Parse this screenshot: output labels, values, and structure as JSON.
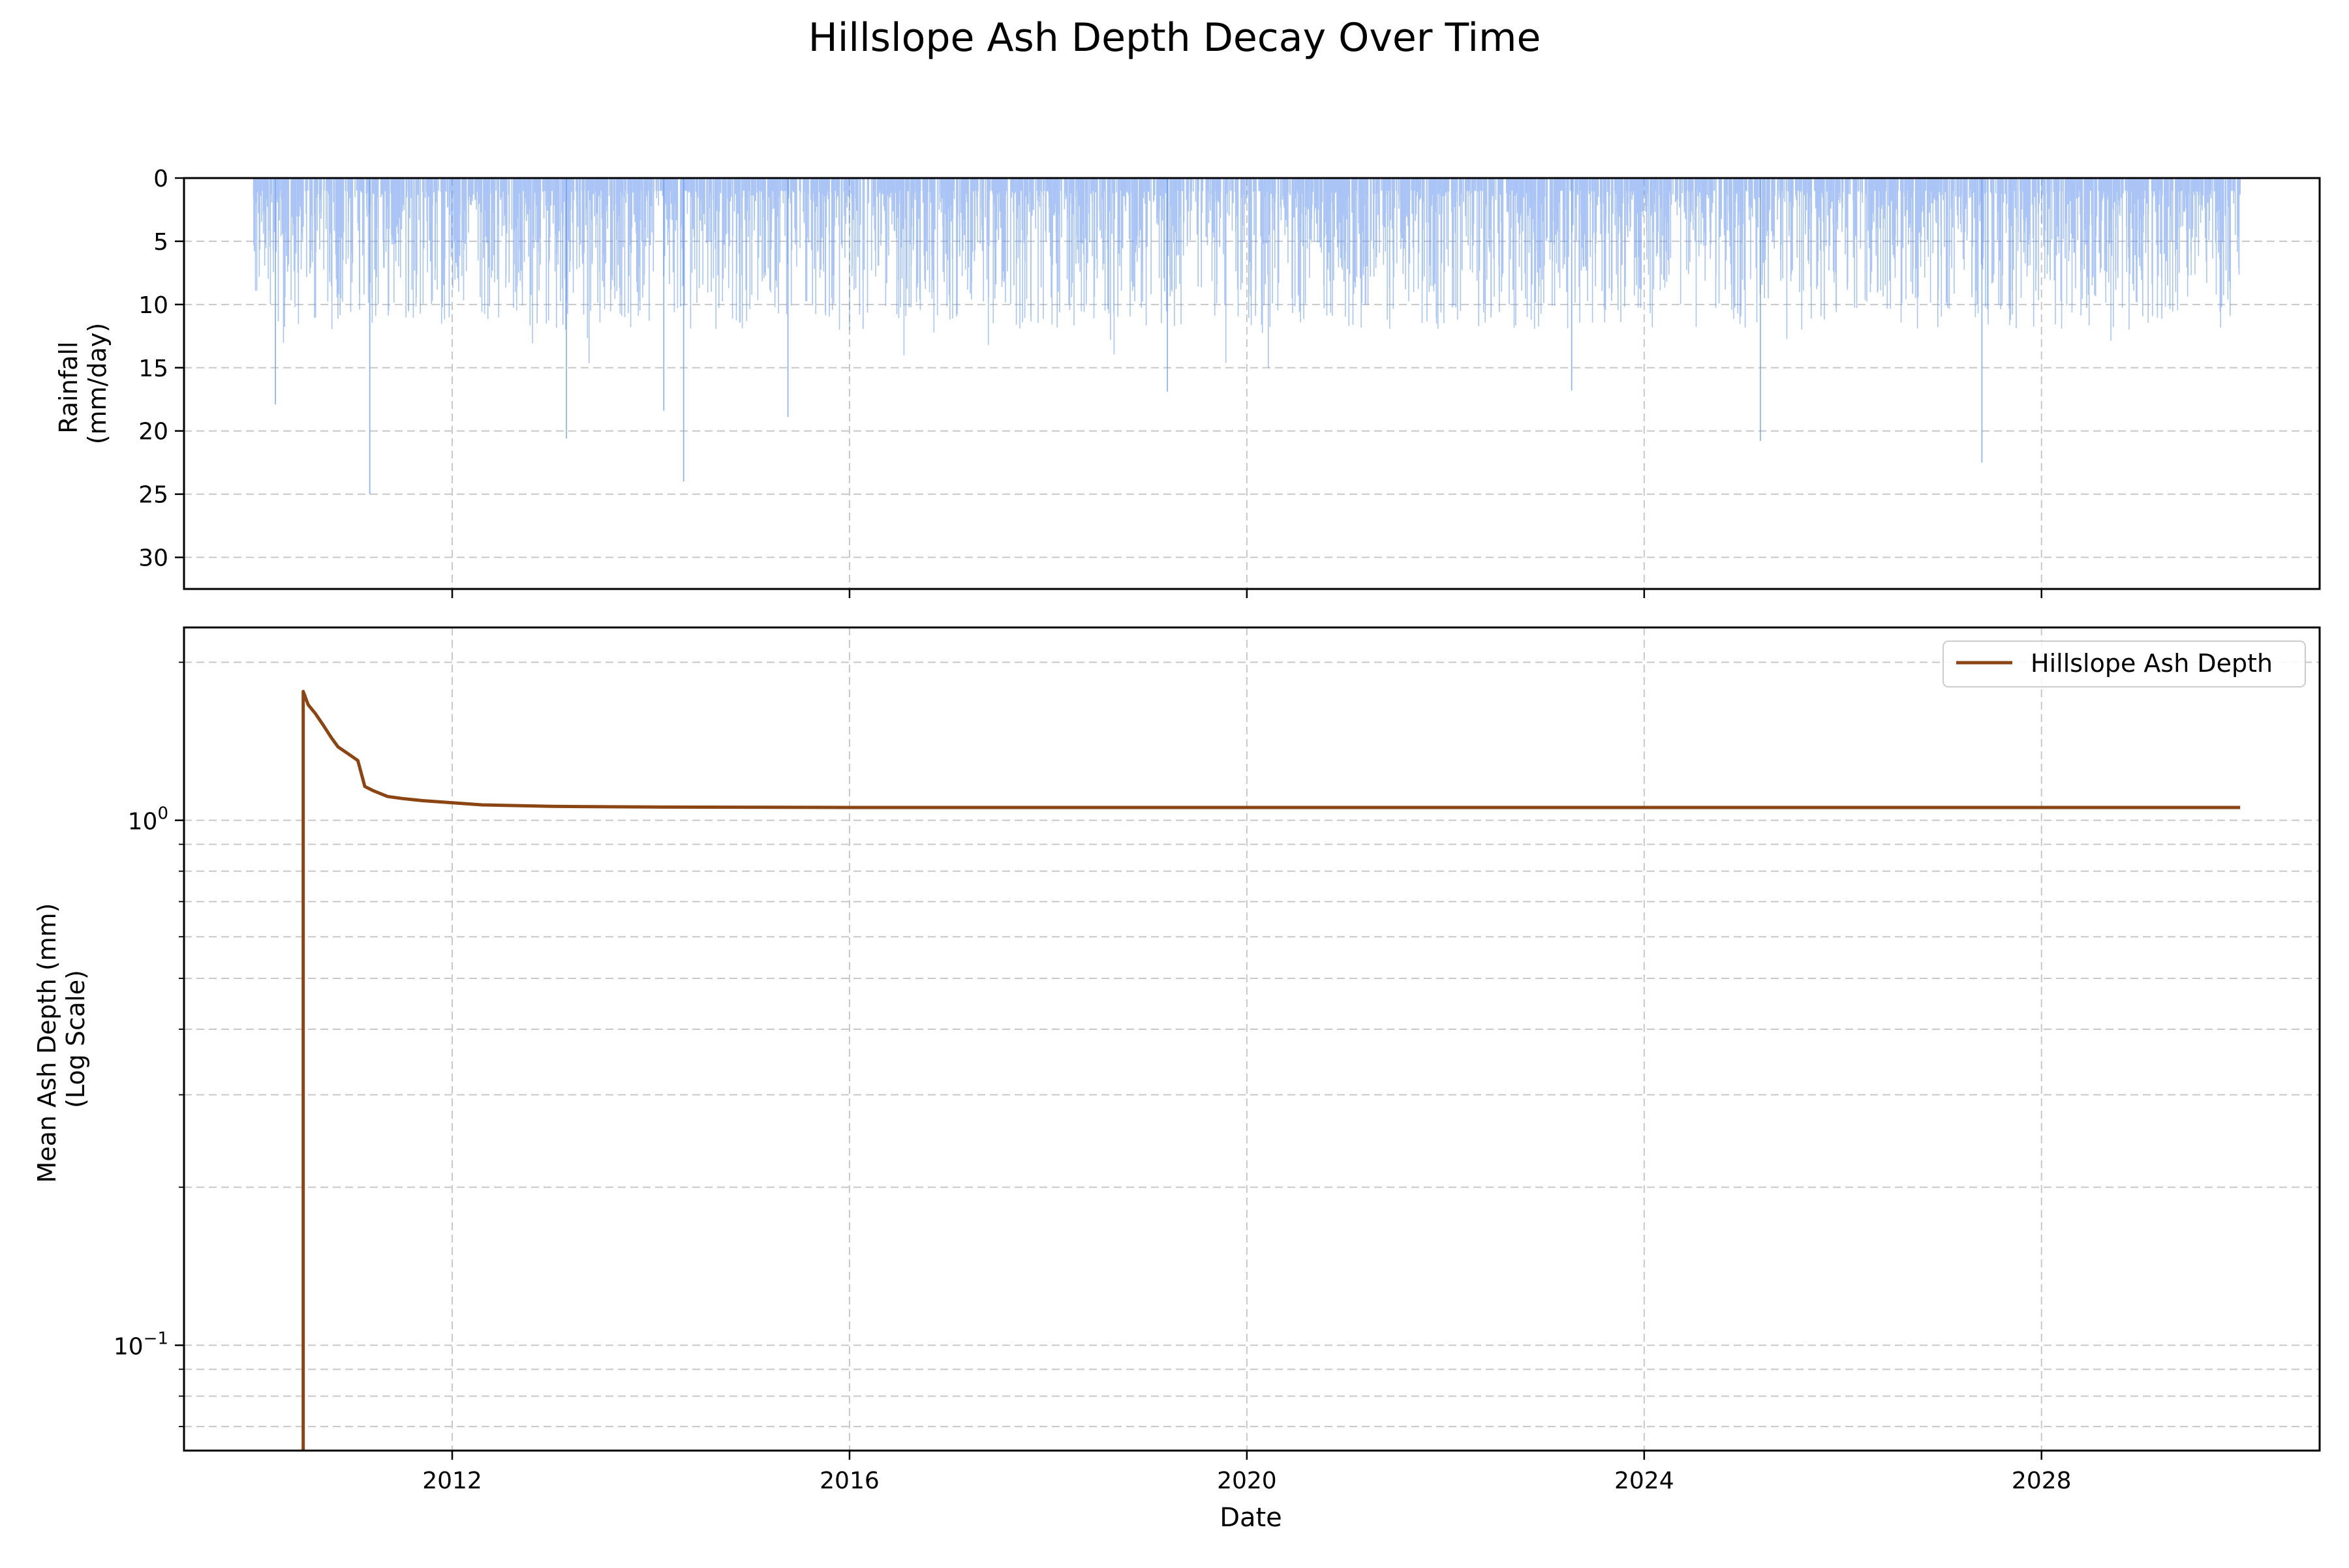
{
  "chart_data": [
    {
      "type": "bar",
      "panel": "top",
      "title": "Hillslope Ash Depth Decay Over Time",
      "ylabel": [
        "Rainfall",
        "(mm/day)"
      ],
      "y_inverted": true,
      "ylim": [
        0,
        32.5
      ],
      "yticks": [
        0,
        5,
        10,
        15,
        20,
        25,
        30
      ],
      "grid": true,
      "color": "#6495ed",
      "bar_values_generation": "daily series, values 0–25 mm/day, dense",
      "x_range_years": [
        2009.3,
        2030.8
      ],
      "data_x_range_years": [
        2010.0,
        2030.0
      ],
      "notable_peaks": [
        {
          "year": 2010.22,
          "value": 17.9
        },
        {
          "year": 2011.17,
          "value": 25.0
        },
        {
          "year": 2013.15,
          "value": 20.6
        },
        {
          "year": 2014.13,
          "value": 18.4
        },
        {
          "year": 2014.33,
          "value": 24.0
        },
        {
          "year": 2015.38,
          "value": 18.9
        },
        {
          "year": 2019.2,
          "value": 16.9
        },
        {
          "year": 2023.27,
          "value": 16.8
        },
        {
          "year": 2025.17,
          "value": 20.8
        },
        {
          "year": 2027.4,
          "value": 22.5
        }
      ]
    },
    {
      "type": "line",
      "panel": "bottom",
      "xlabel": "Date",
      "ylabel": [
        "Mean Ash Depth (mm)",
        "(Log Scale)"
      ],
      "y_scale": "log",
      "ylim": [
        0.063,
        2.33
      ],
      "major_yticks": [
        {
          "value": 1.0,
          "base": "10",
          "exp": "0"
        },
        {
          "value": 0.1,
          "base": "10",
          "exp": "−1"
        }
      ],
      "xticks": [
        "2012",
        "2016",
        "2020",
        "2024",
        "2028"
      ],
      "x_range_years": [
        2009.3,
        2030.8
      ],
      "grid": true,
      "legend": {
        "position": "top-right",
        "entries": [
          "Hillslope Ash Depth"
        ]
      },
      "series": [
        {
          "name": "Hillslope Ash Depth",
          "color": "#8b4513",
          "points": [
            [
              2010.5,
              0.01
            ],
            [
              2010.5,
              1.76
            ],
            [
              2010.55,
              1.66
            ],
            [
              2010.62,
              1.6
            ],
            [
              2010.7,
              1.52
            ],
            [
              2010.78,
              1.44
            ],
            [
              2010.85,
              1.38
            ],
            [
              2010.95,
              1.34
            ],
            [
              2011.05,
              1.3
            ],
            [
              2011.12,
              1.16
            ],
            [
              2011.2,
              1.14
            ],
            [
              2011.35,
              1.11
            ],
            [
              2011.5,
              1.1
            ],
            [
              2011.7,
              1.09
            ],
            [
              2012.0,
              1.08
            ],
            [
              2012.3,
              1.07
            ],
            [
              2013.0,
              1.063
            ],
            [
              2014.0,
              1.06
            ],
            [
              2016.0,
              1.058
            ],
            [
              2020.0,
              1.058
            ],
            [
              2024.0,
              1.058
            ],
            [
              2028.0,
              1.058
            ],
            [
              2030.0,
              1.058
            ]
          ]
        }
      ]
    }
  ]
}
